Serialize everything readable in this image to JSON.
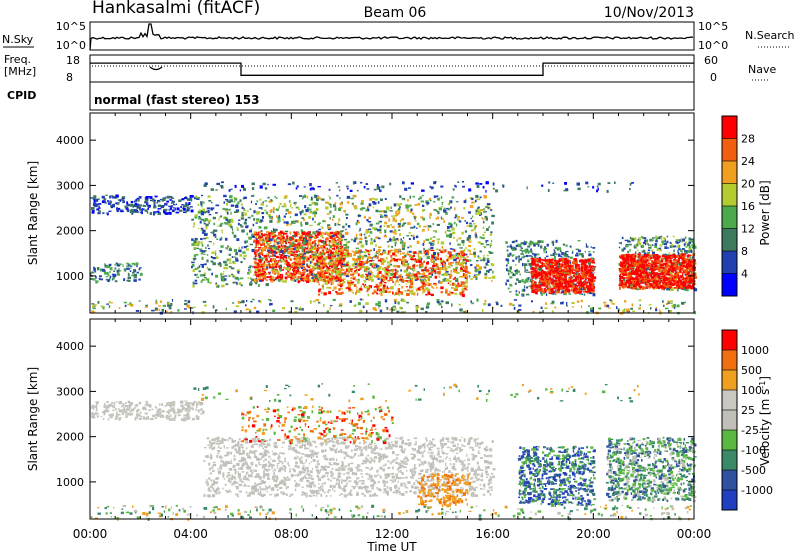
{
  "header": {
    "station": "Hankasalmi (fitACF)",
    "beam": "Beam 06",
    "date": "10/Nov/2013"
  },
  "chart_data": [
    {
      "type": "line",
      "name": "noise-panel",
      "left_label": "N.Sky",
      "right_label": "N.Search",
      "y_tick_labels": [
        "10^5",
        "10^0"
      ],
      "right_tick_labels": [
        "10^5",
        "10^0"
      ]
    },
    {
      "type": "line",
      "name": "frequency-panel",
      "left_label_line1": "Freq.",
      "left_label_line2": "[MHz]",
      "right_label": "Nave",
      "y_ticks": [
        18,
        8
      ],
      "right_ticks": [
        60,
        0
      ],
      "step_points": [
        [
          0,
          0.3
        ],
        [
          6.0,
          0.3
        ],
        [
          6.0,
          0.75
        ],
        [
          18.0,
          0.75
        ],
        [
          18.0,
          0.3
        ],
        [
          24,
          0.3
        ]
      ]
    },
    {
      "type": "table",
      "name": "cpid-panel",
      "label": "CPID",
      "mode_text": "normal (fast stereo) 153"
    },
    {
      "type": "heatmap",
      "name": "power-panel",
      "ylabel": "Slant Range [km]",
      "ylim": [
        180,
        4600
      ],
      "y_ticks": [
        1000,
        2000,
        3000,
        4000
      ],
      "xlim": [
        0,
        24
      ],
      "colorbar": {
        "label": "Power [dB]",
        "ticks": [
          "28",
          "24",
          "20",
          "16",
          "12",
          "8",
          "4"
        ],
        "colors": [
          "#0000ff",
          "#2040b0",
          "#3c7a60",
          "#4caa4c",
          "#b4cc30",
          "#f0a020",
          "#f06010",
          "#ff0000"
        ]
      }
    },
    {
      "type": "heatmap",
      "name": "velocity-panel",
      "ylabel": "Slant Range [km]",
      "ylim": [
        180,
        4600
      ],
      "y_ticks": [
        1000,
        2000,
        3000,
        4000
      ],
      "xlim": [
        0,
        24
      ],
      "xlabel": "Time UT",
      "x_tick_labels": [
        "00:00",
        "04:00",
        "08:00",
        "12:00",
        "16:00",
        "20:00",
        "00:00"
      ],
      "colorbar": {
        "label": "Velocity [m s^-1]",
        "ticks": [
          "1000",
          "500",
          "100",
          "25",
          "-25",
          "-100",
          "-500",
          "-1000"
        ],
        "colors": [
          "#2040c0",
          "#3050a0",
          "#3a8a6a",
          "#5ab840",
          "#c0c0b8",
          "#c8c8c0",
          "#f0a020",
          "#f07010",
          "#ff0000"
        ]
      }
    }
  ]
}
